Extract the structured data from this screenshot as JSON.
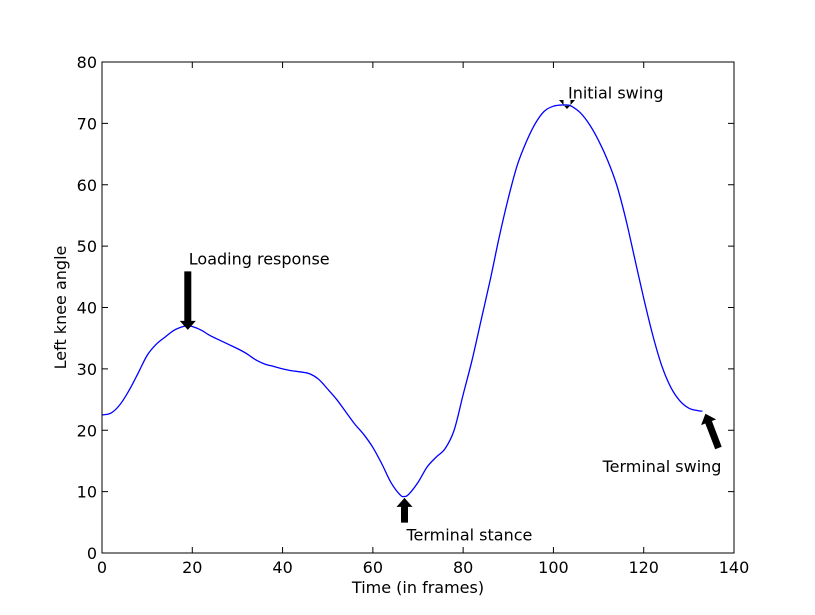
{
  "chart_data": {
    "type": "line",
    "title": "",
    "xlabel": "Time (in frames)",
    "ylabel": "Left knee angle",
    "xlim": [
      0,
      140
    ],
    "ylim": [
      0,
      80
    ],
    "xticks": [
      0,
      20,
      40,
      60,
      80,
      100,
      120,
      140
    ],
    "yticks": [
      0,
      10,
      20,
      30,
      40,
      50,
      60,
      70,
      80
    ],
    "grid": false,
    "legend": false,
    "series": [
      {
        "name": "Left knee angle",
        "color": "#0000ff",
        "x": [
          0,
          2,
          4,
          6,
          8,
          10,
          12,
          14,
          16,
          18,
          19,
          20,
          22,
          24,
          26,
          28,
          30,
          32,
          34,
          36,
          38,
          40,
          42,
          44,
          46,
          48,
          50,
          52,
          54,
          56,
          58,
          60,
          62,
          64,
          66,
          67,
          68,
          70,
          72,
          74,
          76,
          78,
          80,
          82,
          84,
          86,
          88,
          90,
          92,
          94,
          96,
          98,
          100,
          102,
          103,
          104,
          106,
          108,
          110,
          112,
          114,
          116,
          118,
          120,
          122,
          124,
          126,
          128,
          130,
          132,
          133
        ],
        "values": [
          22.5,
          22.8,
          24.2,
          26.5,
          29.3,
          32.2,
          34.0,
          35.2,
          36.3,
          36.9,
          37.0,
          36.9,
          36.3,
          35.4,
          34.7,
          34.0,
          33.3,
          32.5,
          31.5,
          30.8,
          30.4,
          30.0,
          29.7,
          29.5,
          29.2,
          28.3,
          26.7,
          25.0,
          23.0,
          21.0,
          19.3,
          17.2,
          14.5,
          11.5,
          9.5,
          9.2,
          9.6,
          11.5,
          14.0,
          15.6,
          17.0,
          20.0,
          25.8,
          31.5,
          38.0,
          44.5,
          51.5,
          57.8,
          63.2,
          67.0,
          70.0,
          72.0,
          72.8,
          73.0,
          73.0,
          72.8,
          71.7,
          69.8,
          67.2,
          64.0,
          60.0,
          54.5,
          48.0,
          41.5,
          35.5,
          30.5,
          27.0,
          24.8,
          23.6,
          23.2,
          23.1
        ]
      }
    ],
    "annotations": [
      {
        "text": "Loading response",
        "xy": [
          19,
          37
        ],
        "xytext": [
          19,
          48
        ],
        "arrow": "down"
      },
      {
        "text": "Terminal stance",
        "xy": [
          67,
          9.3
        ],
        "xytext": [
          67,
          3
        ],
        "arrow": "up"
      },
      {
        "text": "Initial swing",
        "xy": [
          103,
          73
        ],
        "xytext": [
          103,
          75
        ],
        "arrow": "down"
      },
      {
        "text": "Terminal swing",
        "xy": [
          133,
          23
        ],
        "xytext": [
          137,
          15
        ],
        "arrow": "up-left"
      }
    ]
  }
}
